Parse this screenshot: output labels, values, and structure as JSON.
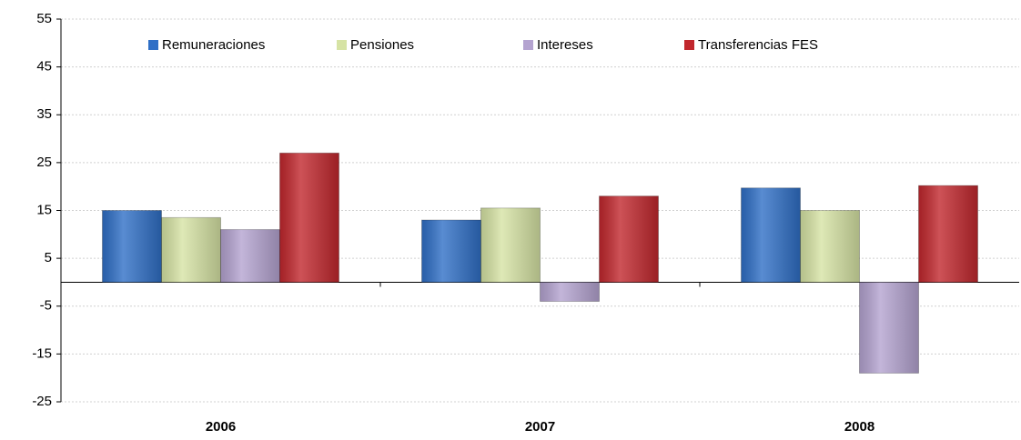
{
  "chart_data": {
    "type": "bar",
    "categories": [
      "2006",
      "2007",
      "2008"
    ],
    "series": [
      {
        "name": "Remuneraciones",
        "color": "#2f6fc6",
        "values": [
          15,
          13,
          19.7
        ]
      },
      {
        "name": "Pensiones",
        "color": "#d6e3a4",
        "values": [
          13.5,
          15.5,
          15
        ]
      },
      {
        "name": "Intereses",
        "color": "#b4a3d0",
        "values": [
          11,
          -4,
          -19
        ]
      },
      {
        "name": "Transferencias FES",
        "color": "#c1272d",
        "values": [
          27,
          18,
          20.2
        ]
      }
    ],
    "ylim": [
      -25,
      55
    ],
    "yticks": [
      -25,
      -15,
      -5,
      5,
      15,
      25,
      35,
      45,
      55
    ],
    "grid": true
  }
}
